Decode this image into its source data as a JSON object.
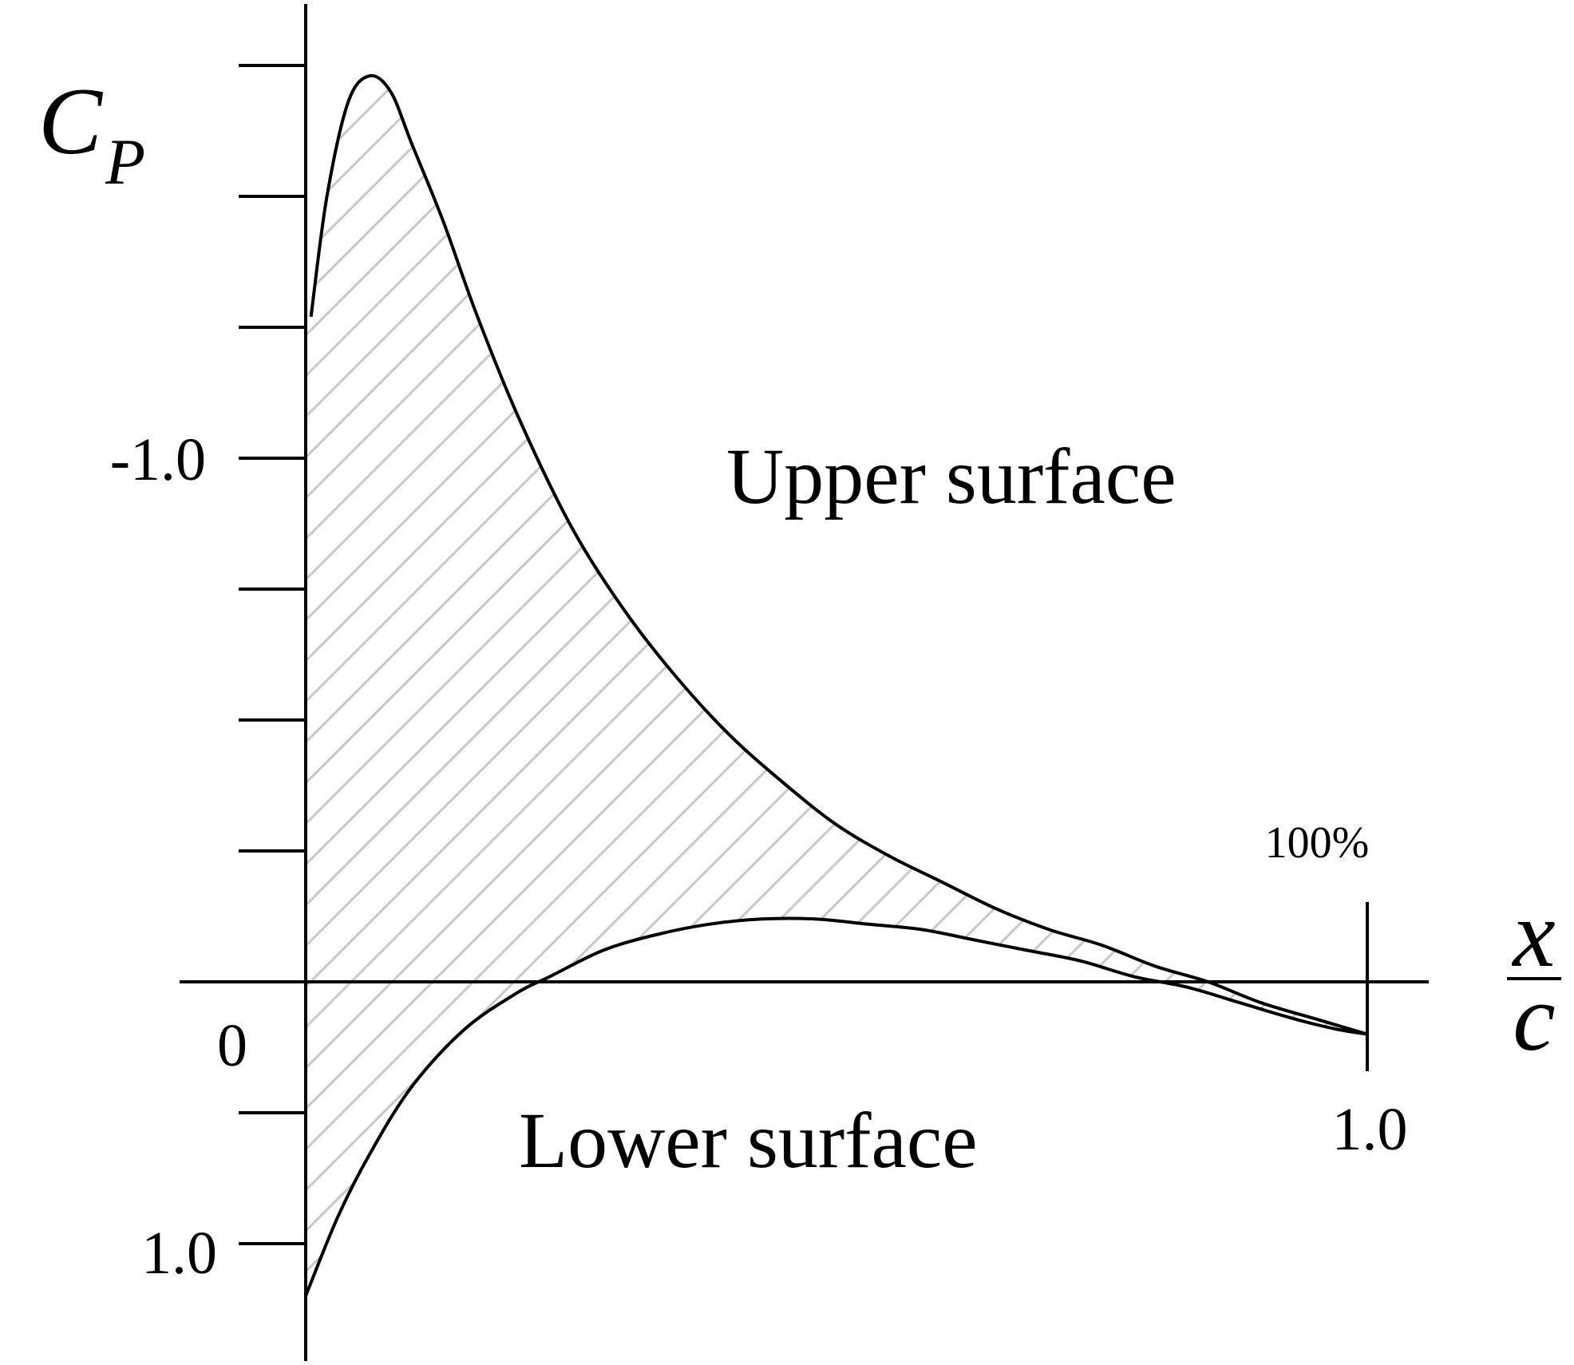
{
  "colors": {
    "curve": "#000000",
    "hatch": "#c8c8c8",
    "background": "#ffffff"
  },
  "chart_data": {
    "type": "line",
    "ylabel": "C",
    "ylabel_subscript": "P",
    "xlabel_numerator": "x",
    "xlabel_denominator": "c",
    "inverted_y": true,
    "xlim": [
      0,
      1.0
    ],
    "ylim": [
      1.0,
      -2.0
    ],
    "y_tick_step": 0.25,
    "tick_labels": {
      "y_neg_one": "-1.0",
      "y_zero": "0",
      "y_one": "1.0",
      "x_one": "1.0"
    },
    "annotations": {
      "upper_surface": "Upper surface",
      "lower_surface": "Lower surface",
      "chord_end": "100%"
    },
    "fill": "hatched region between upper and lower surface curves",
    "series": [
      {
        "name": "Upper surface",
        "x": [
          0.005,
          0.02,
          0.04,
          0.06,
          0.08,
          0.1,
          0.13,
          0.16,
          0.2,
          0.25,
          0.3,
          0.35,
          0.4,
          0.45,
          0.5,
          0.55,
          0.6,
          0.65,
          0.7,
          0.75,
          0.8,
          0.85,
          0.9,
          0.95,
          1.0
        ],
        "y": [
          -1.27,
          -1.5,
          -1.68,
          -1.73,
          -1.7,
          -1.6,
          -1.45,
          -1.28,
          -1.08,
          -0.87,
          -0.71,
          -0.58,
          -0.47,
          -0.38,
          -0.3,
          -0.24,
          -0.19,
          -0.14,
          -0.1,
          -0.07,
          -0.03,
          0.0,
          0.04,
          0.07,
          0.1
        ]
      },
      {
        "name": "Lower surface",
        "x": [
          0.0,
          0.03,
          0.06,
          0.1,
          0.15,
          0.2,
          0.23,
          0.28,
          0.33,
          0.38,
          0.43,
          0.48,
          0.53,
          0.58,
          0.63,
          0.68,
          0.73,
          0.78,
          0.83,
          0.88,
          0.93,
          0.97,
          1.0
        ],
        "y": [
          0.6,
          0.45,
          0.33,
          0.2,
          0.09,
          0.02,
          -0.01,
          -0.06,
          -0.09,
          -0.11,
          -0.12,
          -0.12,
          -0.11,
          -0.1,
          -0.08,
          -0.06,
          -0.04,
          -0.01,
          0.01,
          0.04,
          0.07,
          0.09,
          0.1
        ]
      }
    ]
  }
}
